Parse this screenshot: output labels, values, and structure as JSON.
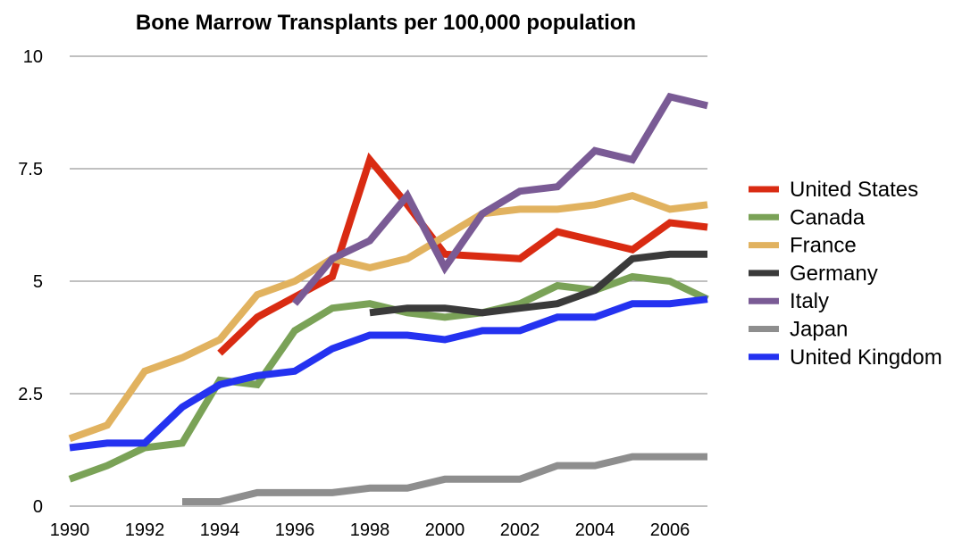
{
  "chart_data": {
    "type": "line",
    "title": "Bone Marrow Transplants per 100,000 population",
    "xlabel": "",
    "ylabel": "",
    "xlim": [
      1990,
      2007
    ],
    "ylim": [
      0,
      10
    ],
    "x_ticks": [
      "1990",
      "1992",
      "1994",
      "1996",
      "1998",
      "2000",
      "2002",
      "2004",
      "2006"
    ],
    "y_ticks": [
      "0",
      "2.5",
      "5",
      "7.5",
      "10"
    ],
    "grid": true,
    "legend_position": "right",
    "series": [
      {
        "name": "United States",
        "color": "#d92b12",
        "points": [
          [
            1994,
            3.4
          ],
          [
            1995,
            4.2
          ],
          [
            1996,
            4.65
          ],
          [
            1997,
            5.1
          ],
          [
            1998,
            7.7
          ],
          [
            1999,
            6.7
          ],
          [
            2000,
            5.6
          ],
          [
            2001,
            5.55
          ],
          [
            2002,
            5.5
          ],
          [
            2003,
            6.1
          ],
          [
            2004,
            5.9
          ],
          [
            2005,
            5.7
          ],
          [
            2006,
            6.3
          ],
          [
            2007,
            6.2
          ]
        ]
      },
      {
        "name": "Canada",
        "color": "#7aa257",
        "points": [
          [
            1990,
            0.6
          ],
          [
            1991,
            0.9
          ],
          [
            1992,
            1.3
          ],
          [
            1993,
            1.4
          ],
          [
            1994,
            2.8
          ],
          [
            1995,
            2.7
          ],
          [
            1996,
            3.9
          ],
          [
            1997,
            4.4
          ],
          [
            1998,
            4.5
          ],
          [
            1999,
            4.3
          ],
          [
            2000,
            4.2
          ],
          [
            2001,
            4.3
          ],
          [
            2002,
            4.5
          ],
          [
            2003,
            4.9
          ],
          [
            2004,
            4.8
          ],
          [
            2005,
            5.1
          ],
          [
            2006,
            5.0
          ],
          [
            2007,
            4.6
          ]
        ]
      },
      {
        "name": "France",
        "color": "#e1b25f",
        "points": [
          [
            1990,
            1.5
          ],
          [
            1991,
            1.8
          ],
          [
            1992,
            3.0
          ],
          [
            1993,
            3.3
          ],
          [
            1994,
            3.7
          ],
          [
            1995,
            4.7
          ],
          [
            1996,
            5.0
          ],
          [
            1997,
            5.5
          ],
          [
            1998,
            5.3
          ],
          [
            1999,
            5.5
          ],
          [
            2000,
            6.0
          ],
          [
            2001,
            6.5
          ],
          [
            2002,
            6.6
          ],
          [
            2003,
            6.6
          ],
          [
            2004,
            6.7
          ],
          [
            2005,
            6.9
          ],
          [
            2006,
            6.6
          ],
          [
            2007,
            6.7
          ]
        ]
      },
      {
        "name": "Germany",
        "color": "#3a3a3a",
        "points": [
          [
            1998,
            4.3
          ],
          [
            1999,
            4.4
          ],
          [
            2000,
            4.4
          ],
          [
            2001,
            4.3
          ],
          [
            2002,
            4.4
          ],
          [
            2003,
            4.5
          ],
          [
            2004,
            4.8
          ],
          [
            2005,
            5.5
          ],
          [
            2006,
            5.6
          ],
          [
            2007,
            5.6
          ]
        ]
      },
      {
        "name": "Italy",
        "color": "#7a5b95",
        "points": [
          [
            1996,
            4.5
          ],
          [
            1997,
            5.5
          ],
          [
            1998,
            5.9
          ],
          [
            1999,
            6.9
          ],
          [
            2000,
            5.3
          ],
          [
            2001,
            6.5
          ],
          [
            2002,
            7.0
          ],
          [
            2003,
            7.1
          ],
          [
            2004,
            7.9
          ],
          [
            2005,
            7.7
          ],
          [
            2006,
            9.1
          ],
          [
            2007,
            8.9
          ]
        ]
      },
      {
        "name": "Japan",
        "color": "#8e8e8e",
        "points": [
          [
            1993,
            0.1
          ],
          [
            1994,
            0.1
          ],
          [
            1995,
            0.3
          ],
          [
            1996,
            0.3
          ],
          [
            1997,
            0.3
          ],
          [
            1998,
            0.4
          ],
          [
            1999,
            0.4
          ],
          [
            2000,
            0.6
          ],
          [
            2001,
            0.6
          ],
          [
            2002,
            0.6
          ],
          [
            2003,
            0.9
          ],
          [
            2004,
            0.9
          ],
          [
            2005,
            1.1
          ],
          [
            2006,
            1.1
          ],
          [
            2007,
            1.1
          ]
        ]
      },
      {
        "name": "United Kingdom",
        "color": "#2432f0",
        "points": [
          [
            1990,
            1.3
          ],
          [
            1991,
            1.4
          ],
          [
            1992,
            1.4
          ],
          [
            1993,
            2.2
          ],
          [
            1994,
            2.7
          ],
          [
            1995,
            2.9
          ],
          [
            1996,
            3.0
          ],
          [
            1997,
            3.5
          ],
          [
            1998,
            3.8
          ],
          [
            1999,
            3.8
          ],
          [
            2000,
            3.7
          ],
          [
            2001,
            3.9
          ],
          [
            2002,
            3.9
          ],
          [
            2003,
            4.2
          ],
          [
            2004,
            4.2
          ],
          [
            2005,
            4.5
          ],
          [
            2006,
            4.5
          ],
          [
            2007,
            4.6
          ]
        ]
      }
    ]
  }
}
